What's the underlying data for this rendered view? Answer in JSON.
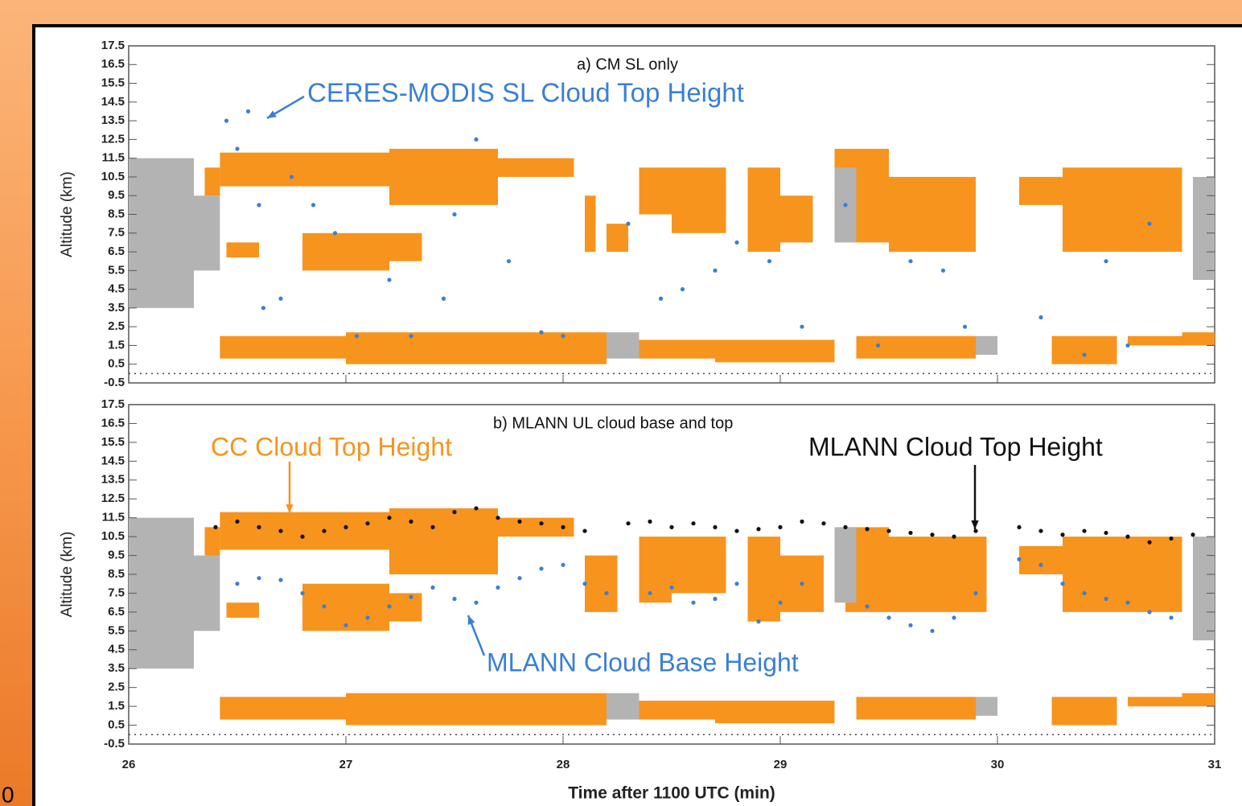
{
  "chart_data": [
    {
      "type": "scatter",
      "title": "a) CM SL only",
      "ylabel": "Altitude (km)",
      "xlim": [
        26,
        31
      ],
      "ylim": [
        -0.5,
        17.5
      ],
      "yticks": [
        -0.5,
        0.5,
        1.5,
        2.5,
        3.5,
        4.5,
        5.5,
        6.5,
        7.5,
        8.5,
        9.5,
        10.5,
        11.5,
        12.5,
        13.5,
        14.5,
        15.5,
        16.5,
        17.5
      ],
      "ref_line": 0,
      "clouds": [
        {
          "color": "#f7941d",
          "blocks": [
            [
              26.35,
              26.42,
              9.5,
              11.0
            ],
            [
              26.42,
              27.2,
              10.0,
              11.8
            ],
            [
              27.2,
              27.7,
              9.0,
              12.0
            ],
            [
              27.7,
              28.05,
              10.5,
              11.5
            ],
            [
              26.45,
              26.6,
              6.2,
              7.0
            ],
            [
              26.8,
              27.2,
              5.5,
              7.5
            ],
            [
              27.2,
              27.35,
              6.0,
              7.5
            ],
            [
              28.1,
              28.15,
              6.5,
              9.5
            ],
            [
              28.2,
              28.3,
              6.5,
              8.0
            ],
            [
              28.35,
              28.5,
              8.5,
              11.0
            ],
            [
              28.5,
              28.75,
              7.5,
              11.0
            ],
            [
              28.85,
              29.0,
              6.5,
              11.0
            ],
            [
              29.0,
              29.15,
              7.0,
              9.5
            ],
            [
              29.25,
              29.5,
              7.0,
              12.0
            ],
            [
              29.5,
              29.9,
              6.5,
              10.5
            ],
            [
              30.1,
              30.3,
              9.0,
              10.5
            ],
            [
              30.3,
              30.85,
              6.5,
              11.0
            ],
            [
              26.42,
              27.0,
              0.8,
              2.0
            ],
            [
              27.0,
              28.2,
              0.5,
              2.2
            ],
            [
              28.35,
              28.7,
              0.8,
              1.8
            ],
            [
              28.7,
              29.25,
              0.6,
              1.8
            ],
            [
              29.35,
              29.9,
              0.8,
              2.0
            ],
            [
              30.25,
              30.55,
              0.5,
              2.0
            ],
            [
              30.6,
              30.85,
              1.5,
              2.0
            ],
            [
              30.85,
              31.0,
              1.5,
              2.2
            ]
          ]
        },
        {
          "color": "#b3b3b3",
          "blocks": [
            [
              26.0,
              26.3,
              3.5,
              11.5
            ],
            [
              26.3,
              26.42,
              5.5,
              9.5
            ],
            [
              28.2,
              28.35,
              0.8,
              2.2
            ],
            [
              29.25,
              29.35,
              7.0,
              11.0
            ],
            [
              29.9,
              30.0,
              1.0,
              2.0
            ],
            [
              30.9,
              31.0,
              5.0,
              10.5
            ]
          ]
        }
      ],
      "series": [
        {
          "color": "#3a7fd5",
          "x": [
            26.45,
            26.5,
            26.55,
            26.6,
            26.62,
            26.7,
            26.75,
            26.85,
            26.95,
            27.05,
            27.2,
            27.3,
            27.45,
            27.5,
            27.6,
            27.75,
            27.9,
            28.0,
            28.3,
            28.45,
            28.55,
            28.7,
            28.8,
            28.95,
            29.1,
            29.3,
            29.45,
            29.6,
            29.75,
            29.85,
            30.2,
            30.4,
            30.5,
            30.6,
            30.7
          ],
          "values": [
            13.5,
            12.0,
            14.0,
            9.0,
            3.5,
            4.0,
            10.5,
            9.0,
            7.5,
            2.0,
            5.0,
            2.0,
            4.0,
            8.5,
            12.5,
            6.0,
            2.2,
            2.0,
            8.0,
            4.0,
            4.5,
            5.5,
            7.0,
            6.0,
            2.5,
            9.0,
            1.5,
            6.0,
            5.5,
            2.5,
            3.0,
            1.0,
            6.0,
            1.5,
            8.0
          ]
        }
      ],
      "annotations": [
        {
          "text": "CERES-MODIS SL Cloud Top Height",
          "color": "#3a7fd5"
        }
      ]
    },
    {
      "type": "scatter",
      "title": "b) MLANN UL cloud base and top",
      "ylabel": "Altitude (km)",
      "xlabel": "Time after 1100 UTC (min)",
      "xlim": [
        26,
        31
      ],
      "ylim": [
        -0.5,
        17.5
      ],
      "yticks": [
        -0.5,
        0.5,
        1.5,
        2.5,
        3.5,
        4.5,
        5.5,
        6.5,
        7.5,
        8.5,
        9.5,
        10.5,
        11.5,
        12.5,
        13.5,
        14.5,
        15.5,
        16.5,
        17.5
      ],
      "xticks": [
        26,
        27,
        28,
        29,
        30,
        31
      ],
      "ref_line": 0,
      "clouds": [
        {
          "color": "#f7941d",
          "blocks": [
            [
              26.35,
              26.42,
              9.5,
              11.0
            ],
            [
              26.42,
              27.2,
              9.8,
              11.8
            ],
            [
              27.2,
              27.7,
              8.5,
              12.0
            ],
            [
              27.7,
              28.05,
              10.5,
              11.5
            ],
            [
              26.45,
              26.6,
              6.2,
              7.0
            ],
            [
              26.8,
              27.2,
              5.5,
              8.0
            ],
            [
              27.2,
              27.35,
              6.0,
              7.5
            ],
            [
              28.1,
              28.25,
              6.5,
              9.5
            ],
            [
              28.35,
              28.5,
              7.0,
              10.5
            ],
            [
              28.5,
              28.75,
              7.5,
              10.5
            ],
            [
              28.85,
              29.0,
              6.0,
              10.5
            ],
            [
              29.0,
              29.2,
              6.5,
              9.5
            ],
            [
              29.3,
              29.5,
              6.5,
              11.0
            ],
            [
              29.5,
              29.95,
              6.5,
              10.5
            ],
            [
              30.1,
              30.3,
              8.5,
              10.0
            ],
            [
              30.3,
              30.85,
              6.5,
              10.5
            ],
            [
              26.42,
              27.0,
              0.8,
              2.0
            ],
            [
              27.0,
              28.2,
              0.5,
              2.2
            ],
            [
              28.35,
              28.7,
              0.8,
              1.8
            ],
            [
              28.7,
              29.25,
              0.6,
              1.8
            ],
            [
              29.35,
              29.9,
              0.8,
              2.0
            ],
            [
              30.25,
              30.55,
              0.5,
              2.0
            ],
            [
              30.6,
              30.85,
              1.5,
              2.0
            ],
            [
              30.85,
              31.0,
              1.5,
              2.2
            ]
          ]
        },
        {
          "color": "#b3b3b3",
          "blocks": [
            [
              26.0,
              26.3,
              3.5,
              11.5
            ],
            [
              26.3,
              26.42,
              5.5,
              9.5
            ],
            [
              28.2,
              28.35,
              0.8,
              2.2
            ],
            [
              29.25,
              29.35,
              7.0,
              11.0
            ],
            [
              29.9,
              30.0,
              1.0,
              2.0
            ],
            [
              30.9,
              31.0,
              5.0,
              10.5
            ]
          ]
        }
      ],
      "series": [
        {
          "color": "#3a7fd5",
          "x": [
            26.5,
            26.6,
            26.7,
            26.8,
            26.9,
            27.0,
            27.1,
            27.2,
            27.3,
            27.4,
            27.5,
            27.6,
            27.7,
            27.8,
            27.9,
            28.0,
            28.1,
            28.2,
            28.4,
            28.5,
            28.6,
            28.7,
            28.8,
            28.9,
            29.0,
            29.1,
            29.4,
            29.5,
            29.6,
            29.7,
            29.8,
            29.9,
            30.1,
            30.2,
            30.3,
            30.4,
            30.5,
            30.6,
            30.7,
            30.8
          ],
          "values": [
            8.0,
            8.3,
            8.2,
            7.5,
            6.8,
            5.8,
            6.2,
            6.8,
            7.3,
            7.8,
            7.2,
            7.0,
            7.8,
            8.3,
            8.8,
            9.0,
            8.0,
            7.5,
            7.5,
            7.8,
            7.0,
            7.2,
            8.0,
            6.0,
            7.0,
            8.0,
            6.8,
            6.2,
            5.8,
            5.5,
            6.2,
            7.5,
            9.3,
            9.0,
            8.0,
            7.5,
            7.2,
            7.0,
            6.5,
            6.2
          ]
        },
        {
          "color": "#111111",
          "x": [
            26.4,
            26.5,
            26.6,
            26.7,
            26.8,
            26.9,
            27.0,
            27.1,
            27.2,
            27.3,
            27.4,
            27.5,
            27.6,
            27.7,
            27.8,
            27.9,
            28.0,
            28.1,
            28.2,
            28.3,
            28.4,
            28.5,
            28.6,
            28.7,
            28.8,
            28.9,
            29.0,
            29.1,
            29.2,
            29.3,
            29.4,
            29.5,
            29.6,
            29.7,
            29.8,
            29.9,
            30.0,
            30.1,
            30.2,
            30.3,
            30.4,
            30.5,
            30.6,
            30.7,
            30.8,
            30.9
          ],
          "values": [
            11.0,
            11.3,
            11.0,
            10.8,
            10.5,
            10.8,
            11.0,
            11.2,
            11.5,
            11.3,
            11.0,
            11.8,
            12.0,
            11.5,
            11.3,
            11.2,
            11.0,
            10.8,
            null,
            11.2,
            11.3,
            11.0,
            11.2,
            11.0,
            10.8,
            10.9,
            11.0,
            11.3,
            11.2,
            11.0,
            10.9,
            10.8,
            10.7,
            10.6,
            10.5,
            10.8,
            null,
            11.0,
            10.8,
            10.6,
            10.8,
            10.7,
            10.5,
            10.2,
            10.4,
            10.6
          ]
        }
      ],
      "annotations": [
        {
          "text": "CC Cloud Top Height",
          "color": "#f7941d"
        },
        {
          "text": "MLANN Cloud Top Height",
          "color": "#111111"
        },
        {
          "text": "MLANN Cloud Base Height",
          "color": "#3a7fd5"
        }
      ]
    }
  ],
  "side_text": "0"
}
